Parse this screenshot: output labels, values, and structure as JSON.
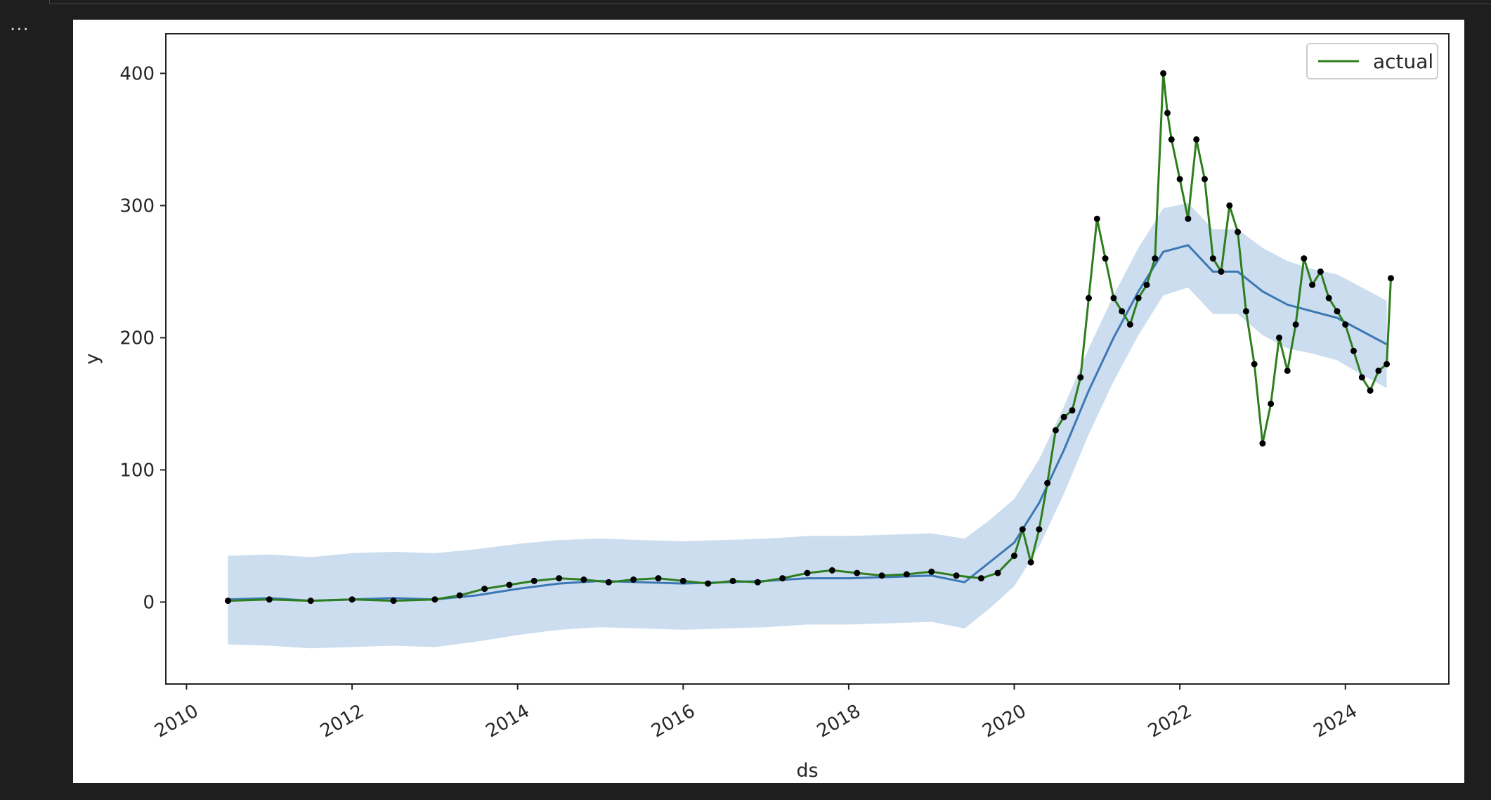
{
  "cell": {
    "ellipsis": "..."
  },
  "colors": {
    "page_bg": "#1e1e1e",
    "panel_bg": "#ffffff",
    "actual_line": "#2e7d1e",
    "forecast_line": "#3c78b4",
    "interval_fill": "#b9d2e8",
    "points": "#000000"
  },
  "chart_data": {
    "type": "line",
    "title": "",
    "xlabel": "ds",
    "ylabel": "y",
    "x_axis_type": "date",
    "xlim": [
      "2009-10-01",
      "2025-04-01"
    ],
    "ylim": [
      -62,
      430
    ],
    "x_ticks": [
      2010,
      2012,
      2014,
      2016,
      2018,
      2020,
      2022,
      2024
    ],
    "x_tick_labels": [
      "2010",
      "2012",
      "2014",
      "2016",
      "2018",
      "2020",
      "2022",
      "2024"
    ],
    "y_ticks": [
      0,
      100,
      200,
      300,
      400
    ],
    "y_tick_labels": [
      "0",
      "100",
      "200",
      "300",
      "400"
    ],
    "grid": false,
    "legend": {
      "placement": "top-right",
      "entries": [
        {
          "label": "actual",
          "color": "#2e7d1e"
        }
      ]
    },
    "series": [
      {
        "name": "actual",
        "role": "observed",
        "markers": true,
        "x": [
          2010.5,
          2011.0,
          2011.5,
          2012.0,
          2012.5,
          2013.0,
          2013.3,
          2013.6,
          2013.9,
          2014.2,
          2014.5,
          2014.8,
          2015.1,
          2015.4,
          2015.7,
          2016.0,
          2016.3,
          2016.6,
          2016.9,
          2017.2,
          2017.5,
          2017.8,
          2018.1,
          2018.4,
          2018.7,
          2019.0,
          2019.3,
          2019.6,
          2019.8,
          2020.0,
          2020.1,
          2020.2,
          2020.3,
          2020.4,
          2020.5,
          2020.6,
          2020.7,
          2020.8,
          2020.9,
          2021.0,
          2021.1,
          2021.2,
          2021.3,
          2021.4,
          2021.5,
          2021.6,
          2021.7,
          2021.8,
          2021.85,
          2021.9,
          2022.0,
          2022.1,
          2022.2,
          2022.3,
          2022.4,
          2022.5,
          2022.6,
          2022.7,
          2022.8,
          2022.9,
          2023.0,
          2023.1,
          2023.2,
          2023.3,
          2023.4,
          2023.5,
          2023.6,
          2023.7,
          2023.8,
          2023.9,
          2024.0,
          2024.1,
          2024.2,
          2024.3,
          2024.4,
          2024.5,
          2024.55
        ],
        "y": [
          1,
          2,
          1,
          2,
          1,
          2,
          5,
          10,
          13,
          16,
          18,
          17,
          15,
          17,
          18,
          16,
          14,
          16,
          15,
          18,
          22,
          24,
          22,
          20,
          21,
          23,
          20,
          18,
          22,
          35,
          55,
          30,
          55,
          90,
          130,
          140,
          145,
          170,
          230,
          290,
          260,
          230,
          220,
          210,
          230,
          240,
          260,
          400,
          370,
          350,
          320,
          290,
          350,
          320,
          260,
          250,
          300,
          280,
          220,
          180,
          120,
          150,
          200,
          175,
          210,
          260,
          240,
          250,
          230,
          220,
          210,
          190,
          170,
          160,
          175,
          180,
          245
        ]
      },
      {
        "name": "",
        "role": "forecast",
        "markers": false,
        "x": [
          2010.5,
          2011.0,
          2011.5,
          2012.0,
          2012.5,
          2013.0,
          2013.5,
          2014.0,
          2014.5,
          2015.0,
          2015.5,
          2016.0,
          2016.5,
          2017.0,
          2017.5,
          2018.0,
          2018.5,
          2019.0,
          2019.4,
          2019.7,
          2020.0,
          2020.3,
          2020.6,
          2020.9,
          2021.2,
          2021.5,
          2021.8,
          2022.1,
          2022.4,
          2022.7,
          2023.0,
          2023.3,
          2023.6,
          2023.9,
          2024.2,
          2024.5
        ],
        "y": [
          2,
          3,
          1,
          2,
          3,
          2,
          5,
          10,
          14,
          16,
          15,
          14,
          15,
          16,
          18,
          18,
          19,
          20,
          15,
          30,
          45,
          75,
          115,
          160,
          200,
          235,
          265,
          270,
          250,
          250,
          235,
          225,
          220,
          215,
          205,
          195
        ]
      }
    ],
    "interval": {
      "x": [
        2010.5,
        2011.0,
        2011.5,
        2012.0,
        2012.5,
        2013.0,
        2013.5,
        2014.0,
        2014.5,
        2015.0,
        2015.5,
        2016.0,
        2016.5,
        2017.0,
        2017.5,
        2018.0,
        2018.5,
        2019.0,
        2019.4,
        2019.7,
        2020.0,
        2020.3,
        2020.6,
        2020.9,
        2021.2,
        2021.5,
        2021.8,
        2022.1,
        2022.4,
        2022.7,
        2023.0,
        2023.3,
        2023.6,
        2023.9,
        2024.2,
        2024.5
      ],
      "upper": [
        35,
        36,
        34,
        37,
        38,
        37,
        40,
        44,
        47,
        48,
        47,
        46,
        47,
        48,
        50,
        50,
        51,
        52,
        48,
        62,
        78,
        108,
        148,
        192,
        232,
        268,
        298,
        302,
        282,
        282,
        268,
        258,
        252,
        248,
        238,
        228
      ],
      "lower": [
        -32,
        -33,
        -35,
        -34,
        -33,
        -34,
        -30,
        -25,
        -21,
        -19,
        -20,
        -21,
        -20,
        -19,
        -17,
        -17,
        -16,
        -15,
        -20,
        -5,
        12,
        42,
        82,
        127,
        167,
        202,
        232,
        238,
        218,
        218,
        202,
        192,
        188,
        183,
        172,
        162
      ]
    }
  }
}
